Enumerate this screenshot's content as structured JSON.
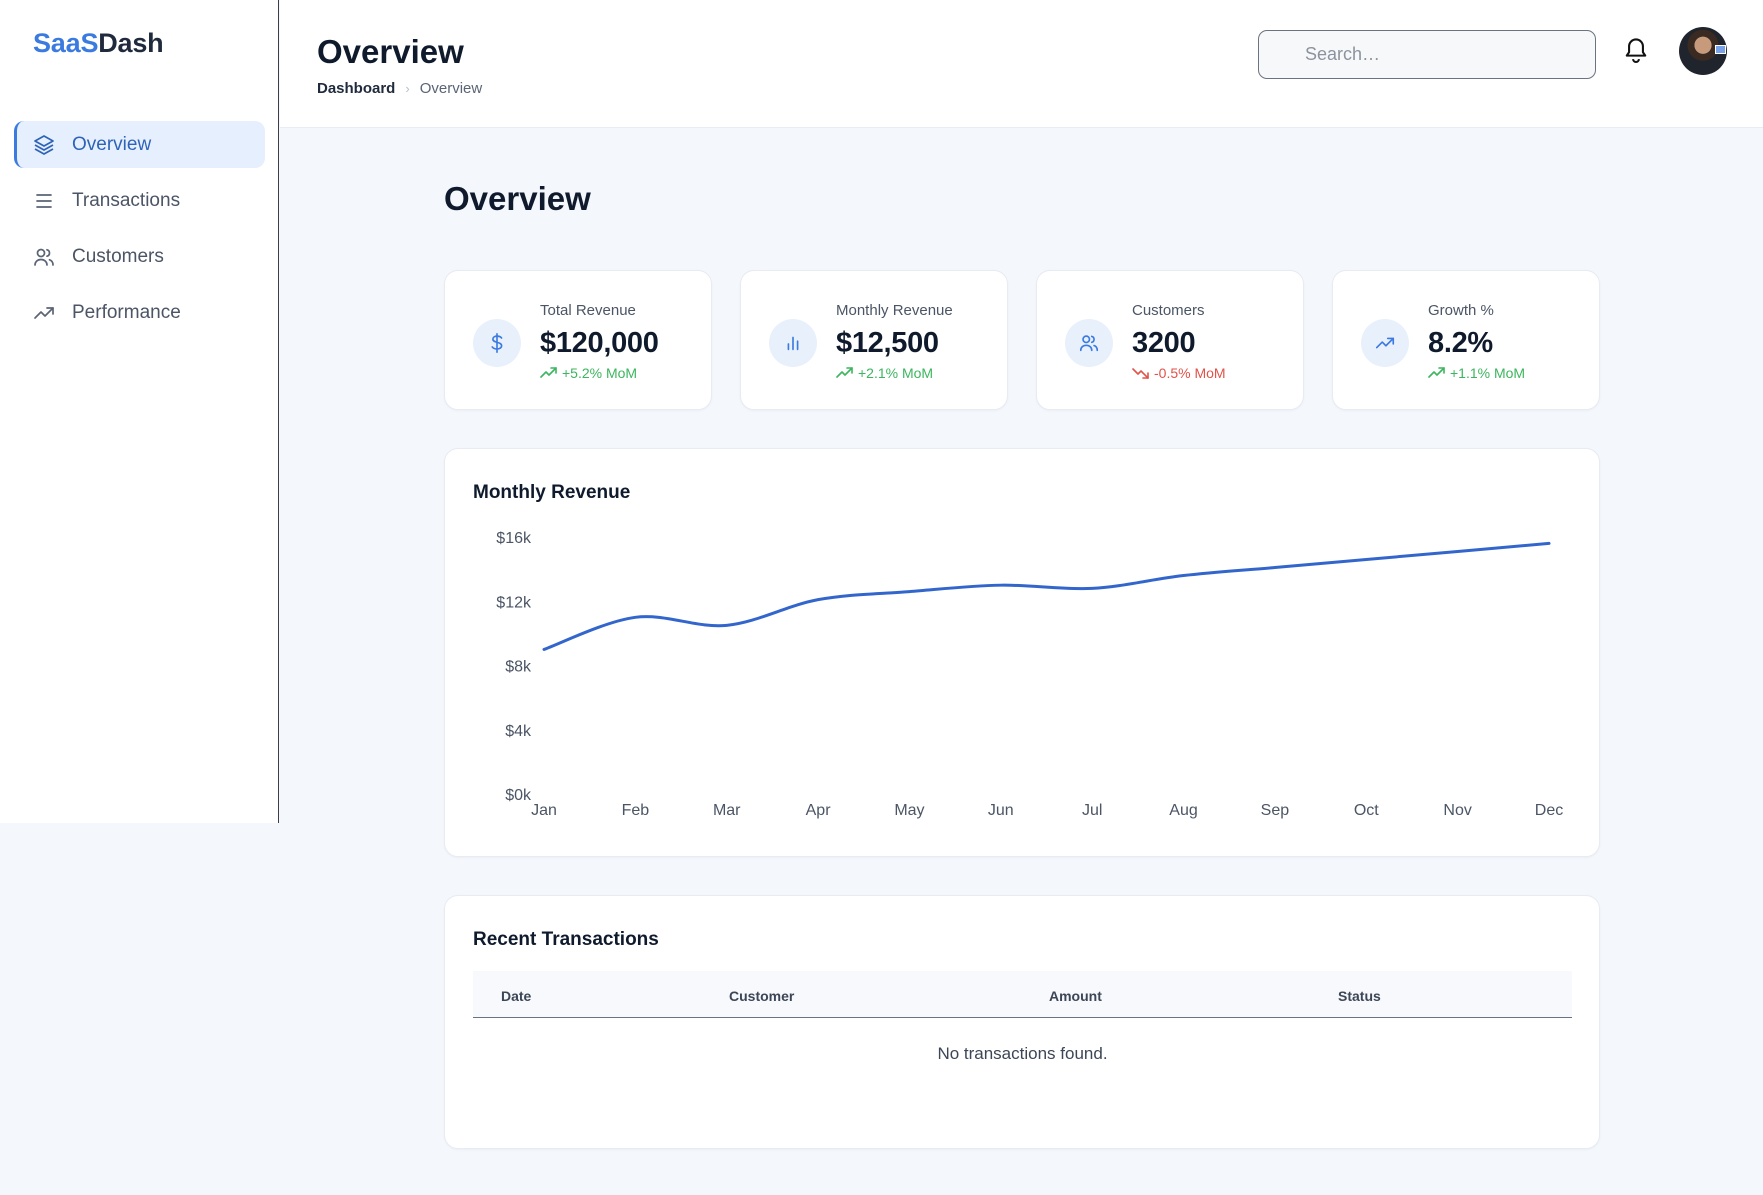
{
  "sidebar": {
    "logo_part1": "SaaS",
    "logo_part2": "Dash",
    "items": [
      {
        "label": "Overview",
        "icon": "layers-icon",
        "active": true
      },
      {
        "label": "Transactions",
        "icon": "list-icon",
        "active": false
      },
      {
        "label": "Customers",
        "icon": "users-icon",
        "active": false
      },
      {
        "label": "Performance",
        "icon": "trending-up-icon",
        "active": false
      }
    ]
  },
  "header": {
    "title": "Overview",
    "breadcrumb": [
      "Dashboard",
      "Overview"
    ],
    "search_placeholder": "Search…",
    "search_value": ""
  },
  "main": {
    "title": "Overview",
    "kpis": [
      {
        "label": "Total Revenue",
        "value": "$120,000",
        "delta": "+5.2% MoM",
        "trend": "up",
        "icon": "dollar-icon"
      },
      {
        "label": "Monthly Revenue",
        "value": "$12,500",
        "delta": "+2.1% MoM",
        "trend": "up",
        "icon": "bar-chart-icon"
      },
      {
        "label": "Customers",
        "value": "3200",
        "delta": "-0.5% MoM",
        "trend": "down",
        "icon": "users-icon"
      },
      {
        "label": "Growth %",
        "value": "8.2%",
        "delta": "+1.1% MoM",
        "trend": "up",
        "icon": "trending-up-icon"
      }
    ],
    "chart_title": "Monthly Revenue",
    "transactions": {
      "title": "Recent Transactions",
      "columns": [
        "Date",
        "Customer",
        "Amount",
        "Status"
      ],
      "empty_text": "No transactions found."
    }
  },
  "colors": {
    "accent": "#3b7be0",
    "line": "#3366cc",
    "up": "#3cb55e",
    "down": "#e0524a"
  },
  "chart_data": {
    "type": "line",
    "title": "Monthly Revenue",
    "categories": [
      "Jan",
      "Feb",
      "Mar",
      "Apr",
      "May",
      "Jun",
      "Jul",
      "Aug",
      "Sep",
      "Oct",
      "Nov",
      "Dec"
    ],
    "series": [
      {
        "values": [
          9000,
          11000,
          10500,
          12100,
          12600,
          13000,
          12800,
          13600,
          14100,
          14600,
          15100,
          15600
        ]
      }
    ],
    "ylim": [
      0,
      16000
    ],
    "yticks": [
      0,
      4000,
      8000,
      12000,
      16000
    ],
    "ytick_labels": [
      "$0k",
      "$4k",
      "$8k",
      "$12k",
      "$16k"
    ],
    "grid": false,
    "legend": "none"
  }
}
